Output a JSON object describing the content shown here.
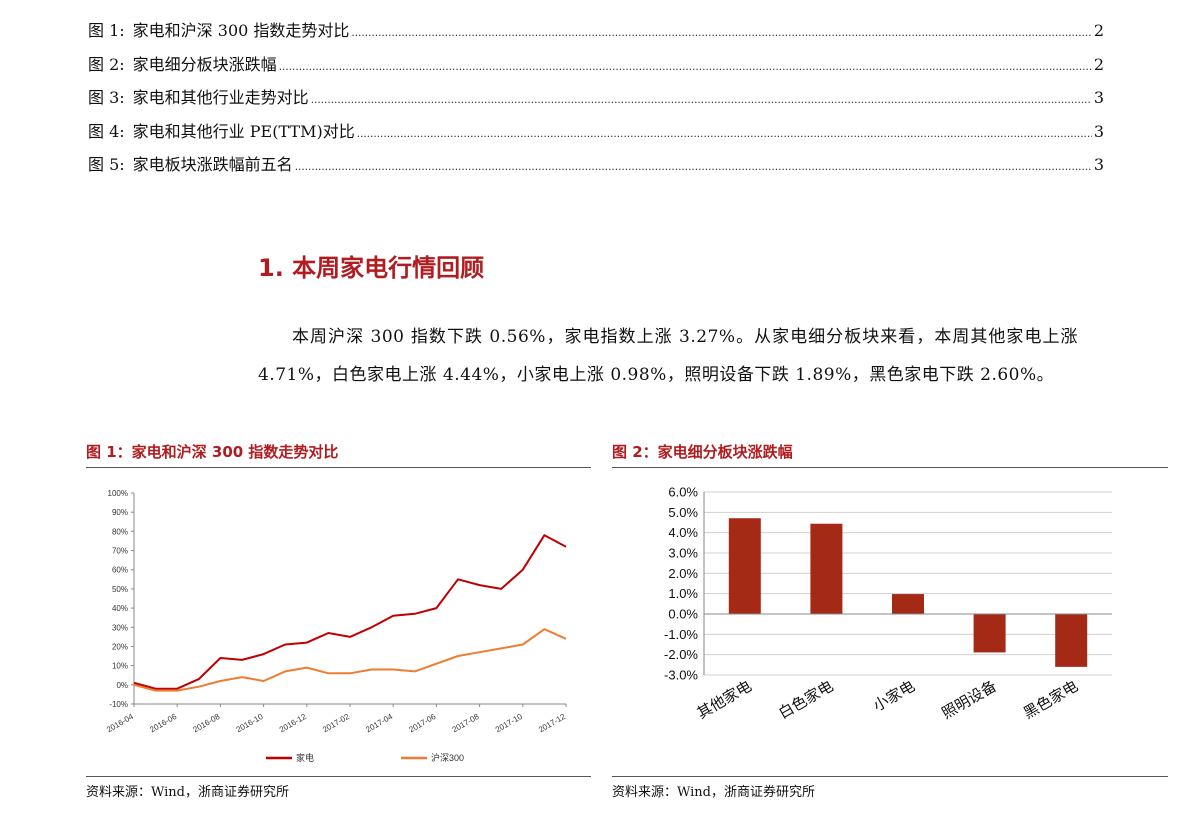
{
  "toc": [
    {
      "label": "图 1:",
      "title": "家电和沪深 300 指数走势对比",
      "page": "2"
    },
    {
      "label": "图 2:",
      "title": "家电细分板块涨跌幅",
      "page": "2"
    },
    {
      "label": "图 3:",
      "title": "家电和其他行业走势对比",
      "page": "3"
    },
    {
      "label": "图 4:",
      "title": "家电和其他行业 PE(TTM)对比",
      "page": "3"
    },
    {
      "label": "图 5:",
      "title": "家电板块涨跌幅前五名",
      "page": "3"
    }
  ],
  "section": {
    "title": "1. 本周家电行情回顾",
    "paragraph": "本周沪深 300 指数下跌 0.56%，家电指数上涨 3.27%。从家电细分板块来看，本周其他家电上涨 4.71%，白色家电上涨 4.44%，小家电上涨 0.98%，照明设备下跌 1.89%，黑色家电下跌 2.60%。"
  },
  "figures": {
    "fig1": {
      "title": "图 1：家电和沪深 300 指数走势对比",
      "source": "资料来源：Wind，浙商证券研究所"
    },
    "fig2": {
      "title": "图 2：家电细分板块涨跌幅",
      "source": "资料来源：Wind，浙商证券研究所"
    }
  },
  "chart_data": [
    {
      "type": "line",
      "ylim": [
        -0.1,
        1.0
      ],
      "y_ticks": [
        "100%",
        "90%",
        "80%",
        "70%",
        "60%",
        "50%",
        "40%",
        "30%",
        "20%",
        "10%",
        "0%",
        "-10%"
      ],
      "x_ticks": [
        "2016-04",
        "2016-06",
        "2016-08",
        "2016-10",
        "2016-12",
        "2017-02",
        "2017-04",
        "2017-06",
        "2017-08",
        "2017-10",
        "2017-12"
      ],
      "grid": false,
      "legend_position": "bottom",
      "x": [
        "2016-04",
        "2016-05",
        "2016-06",
        "2016-07",
        "2016-08",
        "2016-09",
        "2016-10",
        "2016-11",
        "2016-12",
        "2017-01",
        "2017-02",
        "2017-03",
        "2017-04",
        "2017-05",
        "2017-06",
        "2017-07",
        "2017-08",
        "2017-09",
        "2017-10",
        "2017-11",
        "2017-12"
      ],
      "series": [
        {
          "name": "家电",
          "color": "#c00000",
          "values": [
            0.01,
            -0.02,
            -0.02,
            0.03,
            0.14,
            0.13,
            0.16,
            0.21,
            0.22,
            0.27,
            0.25,
            0.3,
            0.36,
            0.37,
            0.4,
            0.55,
            0.52,
            0.5,
            0.6,
            0.78,
            0.72
          ]
        },
        {
          "name": "沪深300",
          "color": "#ed7d31",
          "values": [
            0.0,
            -0.03,
            -0.03,
            -0.01,
            0.02,
            0.04,
            0.02,
            0.07,
            0.09,
            0.06,
            0.06,
            0.08,
            0.08,
            0.07,
            0.11,
            0.15,
            0.17,
            0.19,
            0.21,
            0.29,
            0.24
          ]
        }
      ]
    },
    {
      "type": "bar",
      "categories": [
        "其他家电",
        "白色家电",
        "小家电",
        "照明设备",
        "黑色家电"
      ],
      "values": [
        0.0471,
        0.0444,
        0.0098,
        -0.0189,
        -0.026
      ],
      "ylim": [
        -0.03,
        0.06
      ],
      "y_ticks": [
        "6.0%",
        "5.0%",
        "4.0%",
        "3.0%",
        "2.0%",
        "1.0%",
        "0.0%",
        "-1.0%",
        "-2.0%",
        "-3.0%"
      ],
      "bar_color": "#a52a16",
      "grid": true
    }
  ]
}
